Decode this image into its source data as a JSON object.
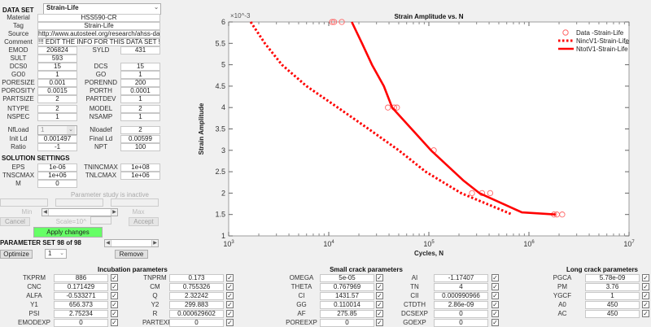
{
  "dataset": {
    "label": "DATA SET",
    "selected": "Strain-Life",
    "info": [
      {
        "label": "Material",
        "value": "HSS590-CR"
      },
      {
        "label": "Tag",
        "value": "Strain-Life"
      },
      {
        "label": "Source",
        "value": "http://www.autosteel.org/research/ahss-data-utiliza"
      },
      {
        "label": "Comment",
        "value": "!!! EDIT THE INFO FOR THIS DATA SET !!!"
      }
    ],
    "pairs": [
      [
        {
          "label": "EMOD",
          "value": "206824"
        },
        {
          "label": "SYLD",
          "value": "431"
        }
      ],
      [
        {
          "label": "SULT",
          "value": "593"
        },
        null
      ],
      [
        {
          "label": "DCS0",
          "value": "15"
        },
        {
          "label": "DCS",
          "value": "15"
        }
      ],
      [
        {
          "label": "GO0",
          "value": "1"
        },
        {
          "label": "GO",
          "value": "1"
        }
      ],
      [
        {
          "label": "PORESIZE",
          "value": "0.001"
        },
        {
          "label": "PORENND",
          "value": "200"
        }
      ],
      [
        {
          "label": "POROSITY",
          "value": "0.0015"
        },
        {
          "label": "PORTH",
          "value": "0.0001"
        }
      ],
      [
        {
          "label": "PARTSIZE",
          "value": "2"
        },
        {
          "label": "PARTDEV",
          "value": "1"
        }
      ],
      [
        {
          "label": "NTYPE",
          "value": "2"
        },
        {
          "label": "MODEL",
          "value": "2"
        }
      ],
      [
        {
          "label": "NSPEC",
          "value": "1"
        },
        {
          "label": "NSAMP",
          "value": "1"
        }
      ],
      [
        {
          "label": "NfLoad",
          "value": "1",
          "dropdown": true
        },
        {
          "label": "Nloadef",
          "value": "2"
        }
      ],
      [
        {
          "label": "Init Ld",
          "value": "0.001497"
        },
        {
          "label": "Final Ld",
          "value": "0.00599"
        }
      ],
      [
        {
          "label": "Ratio",
          "value": "-1"
        },
        {
          "label": "NPT",
          "value": "100"
        }
      ]
    ]
  },
  "solution": {
    "title": "SOLUTION SETTINGS",
    "pairs": [
      [
        {
          "label": "EPS",
          "value": "1e-06"
        },
        {
          "label": "TNINCMAX",
          "value": "1e+08"
        }
      ],
      [
        {
          "label": "TNSCMAX",
          "value": "1e+06"
        },
        {
          "label": "TNLCMAX",
          "value": "1e+06"
        }
      ],
      [
        {
          "label": "M",
          "value": "0"
        },
        null
      ]
    ]
  },
  "study": {
    "status": "Parameter study is inactive",
    "min": "Min",
    "max": "Max",
    "cancel": "Cancel",
    "scale": "Scale=10^",
    "accept": "Accept",
    "apply": "Apply changes",
    "apply_color": "#66ff66"
  },
  "paramset": {
    "title": "PARAMETER SET 98 of 98",
    "optimize": "Optimize",
    "selected": "1",
    "remove": "Remove"
  },
  "groups": [
    {
      "title": "Incubation parameters",
      "cols": [
        [
          [
            "TKPRM",
            "886"
          ],
          [
            "CNC",
            "0.171429"
          ],
          [
            "ALFA",
            "-0.533271"
          ],
          [
            "Y1",
            "656.373"
          ],
          [
            "PSI",
            "2.75234"
          ],
          [
            "EMODEXP",
            "0"
          ]
        ],
        [
          [
            "TNPRM",
            "0.173"
          ],
          [
            "CM",
            "0.755326"
          ],
          [
            "Q",
            "2.32242"
          ],
          [
            "Y2",
            "299.883"
          ],
          [
            "R",
            "0.000629602"
          ],
          [
            "PARTEXP",
            "0"
          ]
        ]
      ]
    },
    {
      "title": "Small crack parameters",
      "cols": [
        [
          [
            "OMEGA",
            "5e-05"
          ],
          [
            "THETA",
            "0.767969"
          ],
          [
            "CI",
            "1431.57"
          ],
          [
            "GG",
            "0.110014"
          ],
          [
            "AF",
            "275.85"
          ],
          [
            "POREEXP",
            "0"
          ]
        ],
        [
          [
            "AI",
            "-1.17407"
          ],
          [
            "TN",
            "4"
          ],
          [
            "CII",
            "0.000990966"
          ],
          [
            "CTDTH",
            "2.86e-09"
          ],
          [
            "DCSEXP",
            "0"
          ],
          [
            "GOEXP",
            "0"
          ]
        ]
      ]
    },
    {
      "title": "Long crack parameters",
      "cols": [
        [
          [
            "PGCA",
            "5.78e-09"
          ],
          [
            "PM",
            "3.76"
          ],
          [
            "YGCF",
            "1"
          ],
          [
            "A0",
            "450"
          ],
          [
            "AC",
            "450"
          ]
        ]
      ]
    }
  ],
  "checkbox_checked": true,
  "chart_data": {
    "type": "line",
    "title": "Strain Amplitude vs. N",
    "xlabel": "Cycles, N",
    "ylabel": "Strain Amplitude",
    "xscale": "log",
    "xlim": [
      1000,
      10000000
    ],
    "ylim": [
      1,
      6
    ],
    "y_multiplier": "×10^-3",
    "xticks": [
      "10^3",
      "10^4",
      "10^5",
      "10^6",
      "10^7"
    ],
    "xtick_values": [
      1000,
      10000,
      100000,
      1000000,
      10000000
    ],
    "yticks": [
      "1",
      "1.5",
      "2",
      "2.5",
      "3",
      "3.5",
      "4",
      "4.5",
      "5",
      "5.5",
      "6"
    ],
    "grid": false,
    "legend": "top-right",
    "series": [
      {
        "name": "Data -Strain-Life",
        "style": "markers-circle",
        "color": "#ff6666",
        "x": [
          10800,
          11300,
          13500,
          39000,
          45000,
          48000,
          112000,
          270000,
          340000,
          410000,
          1780000,
          1900000,
          2150000
        ],
        "y": [
          6,
          6,
          6,
          4,
          4,
          4,
          3,
          2,
          2,
          2,
          1.5,
          1.5,
          1.5
        ]
      },
      {
        "name": "NincV1-Strain-Life",
        "style": "dotted",
        "color": "#ff0000",
        "x": [
          1660,
          2300,
          3400,
          6000,
          12300,
          25000,
          50000,
          93000,
          210000,
          680000
        ],
        "y": [
          6,
          5.5,
          5,
          4.5,
          4,
          3.5,
          3,
          2.5,
          2,
          1.5
        ]
      },
      {
        "name": "NtotV1-Strain-Life",
        "style": "solid",
        "color": "#ff0000",
        "x": [
          17000,
          21500,
          27000,
          35500,
          43000,
          105000,
          220000,
          320000,
          850000,
          1850000
        ],
        "y": [
          6,
          5.5,
          5,
          4.5,
          4,
          3,
          2.3,
          2,
          1.55,
          1.5
        ]
      }
    ]
  }
}
